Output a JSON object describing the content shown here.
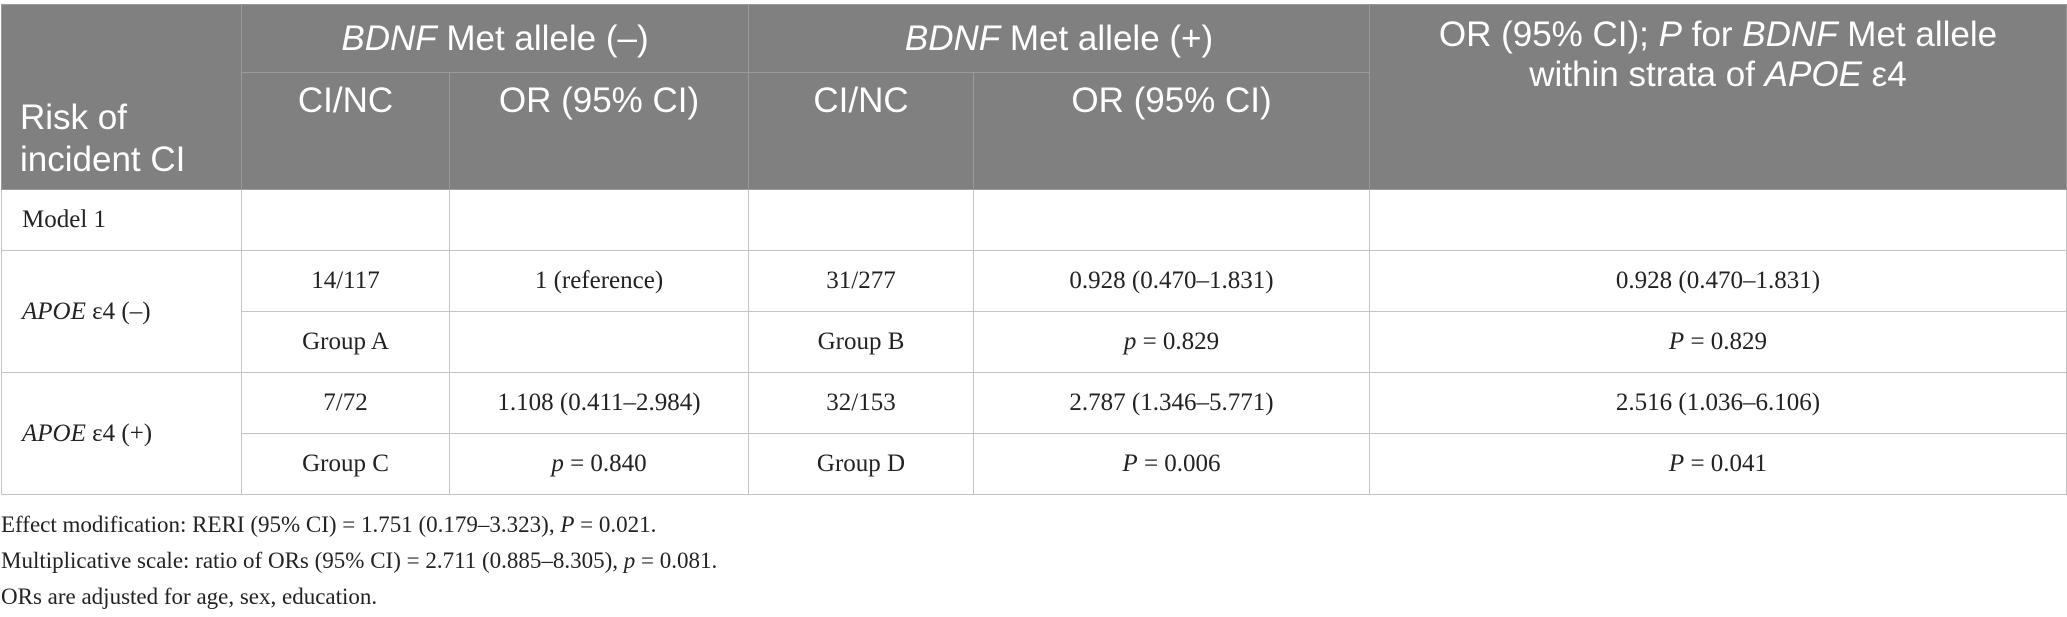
{
  "header": {
    "risk_line1": "Risk of",
    "risk_line2": "incident CI",
    "neg_group": {
      "gene": "BDNF",
      "rest": " Met allele (–)"
    },
    "pos_group": {
      "gene": "BDNF",
      "rest": " Met allele (+)"
    },
    "or_col": {
      "part1": "OR (95% CI); ",
      "p": "P",
      "part2": " for ",
      "gene": "BDNF",
      "part3": " Met allele",
      "part4": "within strata of ",
      "apoe": "APOE",
      "part5": " ε4"
    },
    "sub_cinc": "CI/NC",
    "sub_or": "OR (95% CI)"
  },
  "rows": {
    "model_label": "Model 1",
    "apoe_neg": {
      "gene": "APOE",
      "rest": " ε4 (–)",
      "r1": {
        "cinc_neg": "14/117",
        "or_neg": "1 (reference)",
        "cinc_pos": "31/277",
        "or_pos": "0.928 (0.470–1.831)",
        "or_strata": "0.928 (0.470–1.831)"
      },
      "r2": {
        "group_neg": "Group A",
        "p_neg": "",
        "group_pos": "Group B",
        "p_pos_sym": "p",
        "p_pos_val": " = 0.829",
        "p_str_sym": "P",
        "p_str_val": " = 0.829"
      }
    },
    "apoe_pos": {
      "gene": "APOE",
      "rest": " ε4 (+)",
      "r1": {
        "cinc_neg": "7/72",
        "or_neg": "1.108 (0.411–2.984)",
        "cinc_pos": "32/153",
        "or_pos": "2.787 (1.346–5.771)",
        "or_strata": "2.516 (1.036–6.106)"
      },
      "r2": {
        "group_neg": "Group C",
        "p_neg_sym": "p",
        "p_neg_val": " = 0.840",
        "group_pos": "Group D",
        "p_pos_sym": "P",
        "p_pos_val": " = 0.006",
        "p_str_sym": "P",
        "p_str_val": " = 0.041"
      }
    }
  },
  "notes": {
    "n1_a": "Effect modification: RERI (95% CI) = 1.751 (0.179–3.323), ",
    "n1_p": "P",
    "n1_b": " = 0.021.",
    "n2_a": "Multiplicative scale: ratio of ORs (95% CI) = 2.711 (0.885–8.305), ",
    "n2_p": "p",
    "n2_b": " = 0.081.",
    "n3": "ORs are adjusted for age, sex, education."
  }
}
